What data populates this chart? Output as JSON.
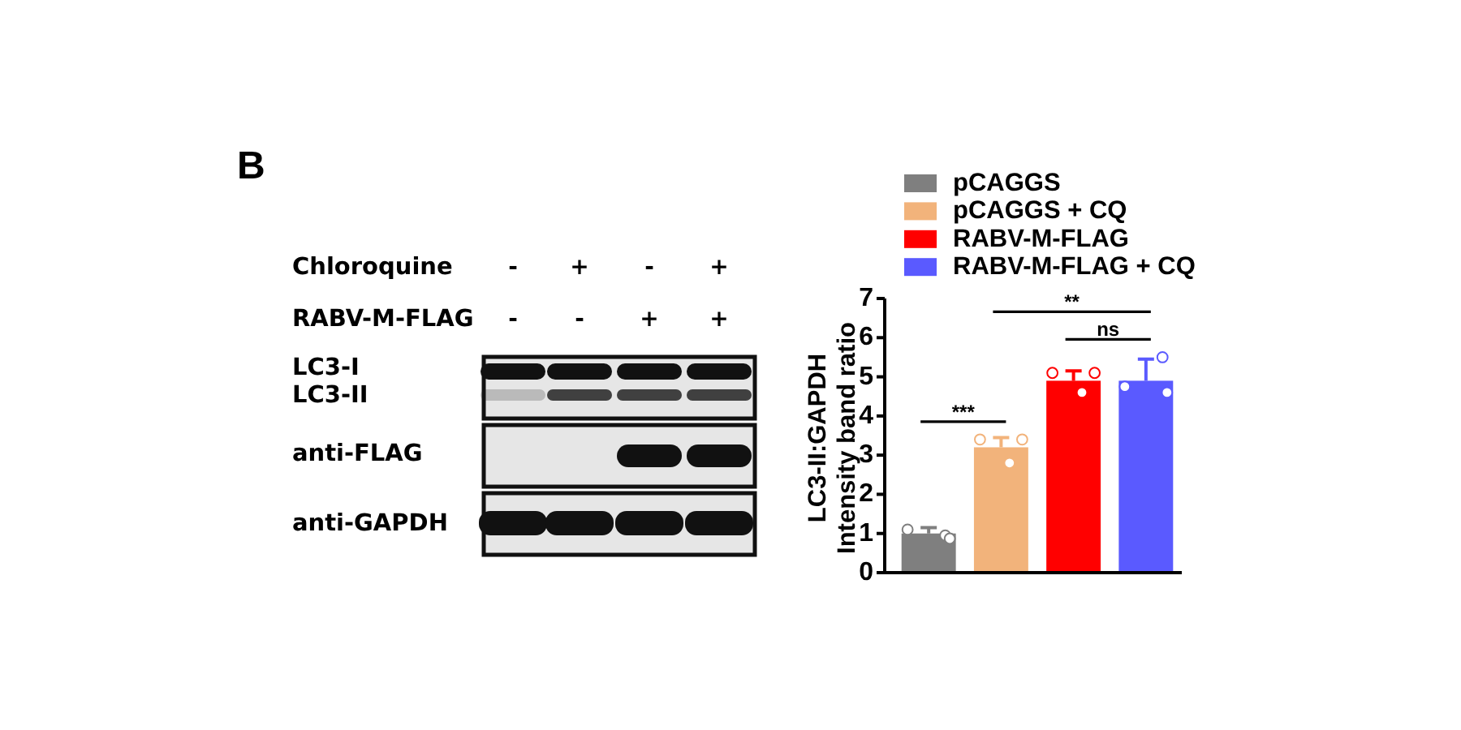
{
  "chart_data": [
    {
      "type": "other",
      "title": "B",
      "annotations": [
        "Chloroquine",
        "-",
        "+",
        "-",
        "+",
        "RABV-M-FLAG",
        "-",
        "-",
        "+",
        "+",
        "LC3-I",
        "LC3-II",
        "anti-FLAG",
        "anti-GAPDH"
      ]
    },
    {
      "type": "bar",
      "categories": [
        null,
        null,
        null,
        null
      ],
      "stacked": true,
      "series": [
        {
          "type": "bar",
          "name": "pCAGGS",
          "color": "#7f7f7f",
          "values": [
            1.0,
            null,
            null,
            null
          ],
          "errors": [
            [
              1.0,
              1.15
            ],
            null,
            null,
            null
          ]
        },
        {
          "type": "bar",
          "name": "pCAGGS + CQ",
          "color": "#f2b37b",
          "values": [
            null,
            3.2,
            null,
            null
          ],
          "errors": [
            null,
            [
              3.2,
              3.45
            ],
            null,
            null
          ]
        },
        {
          "type": "bar",
          "name": "RABV-M-FLAG",
          "color": "#ff0000",
          "values": [
            null,
            null,
            4.9,
            null
          ],
          "errors": [
            null,
            null,
            [
              4.9,
              5.15
            ],
            null
          ]
        },
        {
          "type": "bar",
          "name": "RABV-M-FLAG + CQ",
          "color": "#5a5aff",
          "values": [
            null,
            null,
            null,
            4.9
          ],
          "errors": [
            null,
            null,
            null,
            [
              4.9,
              5.45
            ]
          ]
        },
        {
          "type": "scatter",
          "color": "#ffffff",
          "values": [
            1.1,
            3.4,
            5.1,
            4.75
          ]
        },
        {
          "type": "scatter",
          "color": "#ffffff",
          "values": [
            0.95,
            2.8,
            4.6,
            5.5
          ]
        },
        {
          "type": "scatter",
          "color": "#ffffff",
          "values": [
            0.87,
            3.4,
            5.1,
            4.6
          ]
        }
      ],
      "ylabel": "LC3-II:GAPDH\nIntensity band ratio",
      "ylim": [
        0,
        7
      ],
      "yticks": [
        0,
        1,
        2,
        3,
        4,
        5,
        6,
        7
      ],
      "legend": "top",
      "marker": "circle",
      "annotations": [
        "***",
        "**",
        "ns"
      ]
    }
  ]
}
